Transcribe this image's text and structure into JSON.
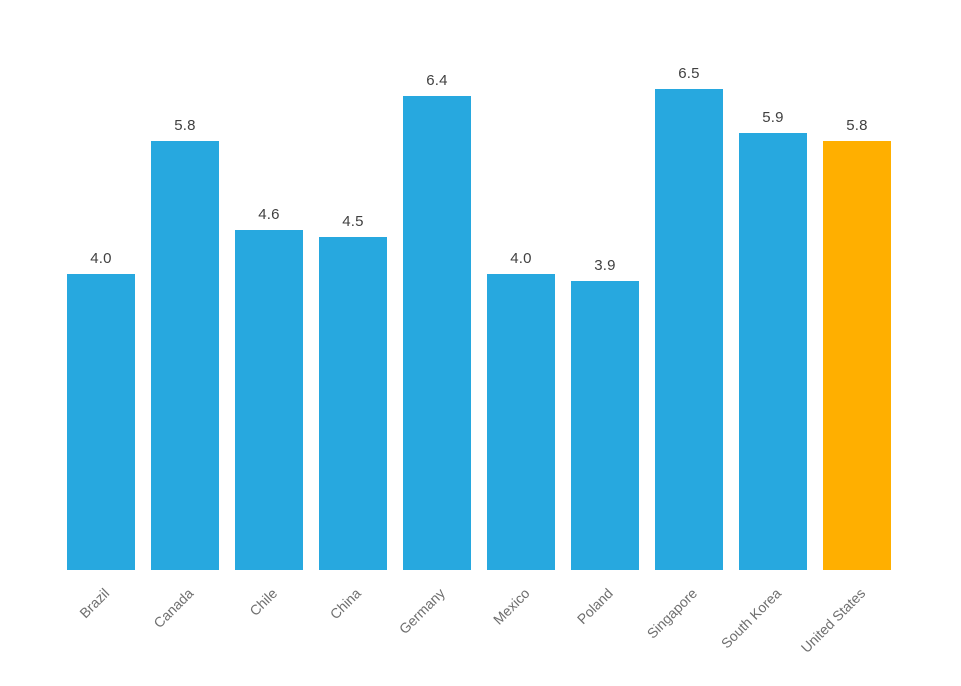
{
  "chart_data": {
    "type": "bar",
    "title": "",
    "xlabel": "",
    "ylabel": "",
    "categories": [
      "Brazil",
      "Canada",
      "Chile",
      "China",
      "Germany",
      "Mexico",
      "Poland",
      "Singapore",
      "South Korea",
      "United States"
    ],
    "values": [
      4.0,
      5.8,
      4.6,
      4.5,
      6.4,
      4.0,
      3.9,
      6.5,
      5.9,
      5.8
    ],
    "value_labels": [
      "4.0",
      "5.8",
      "4.6",
      "4.5",
      "6.4",
      "4.0",
      "3.9",
      "6.5",
      "5.9",
      "5.8"
    ],
    "highlight_category": "United States",
    "highlight_index": 9,
    "ylim": [
      0,
      7
    ],
    "grid": false,
    "axes_visible": false,
    "legend_position": "none",
    "category_label_rotation_deg": 45,
    "colors": {
      "bar": "#27A8DF",
      "highlight": "#FFAF00",
      "value_label": "#404040",
      "category_label": "#6E6E6E",
      "background": "#FFFFFF"
    }
  }
}
